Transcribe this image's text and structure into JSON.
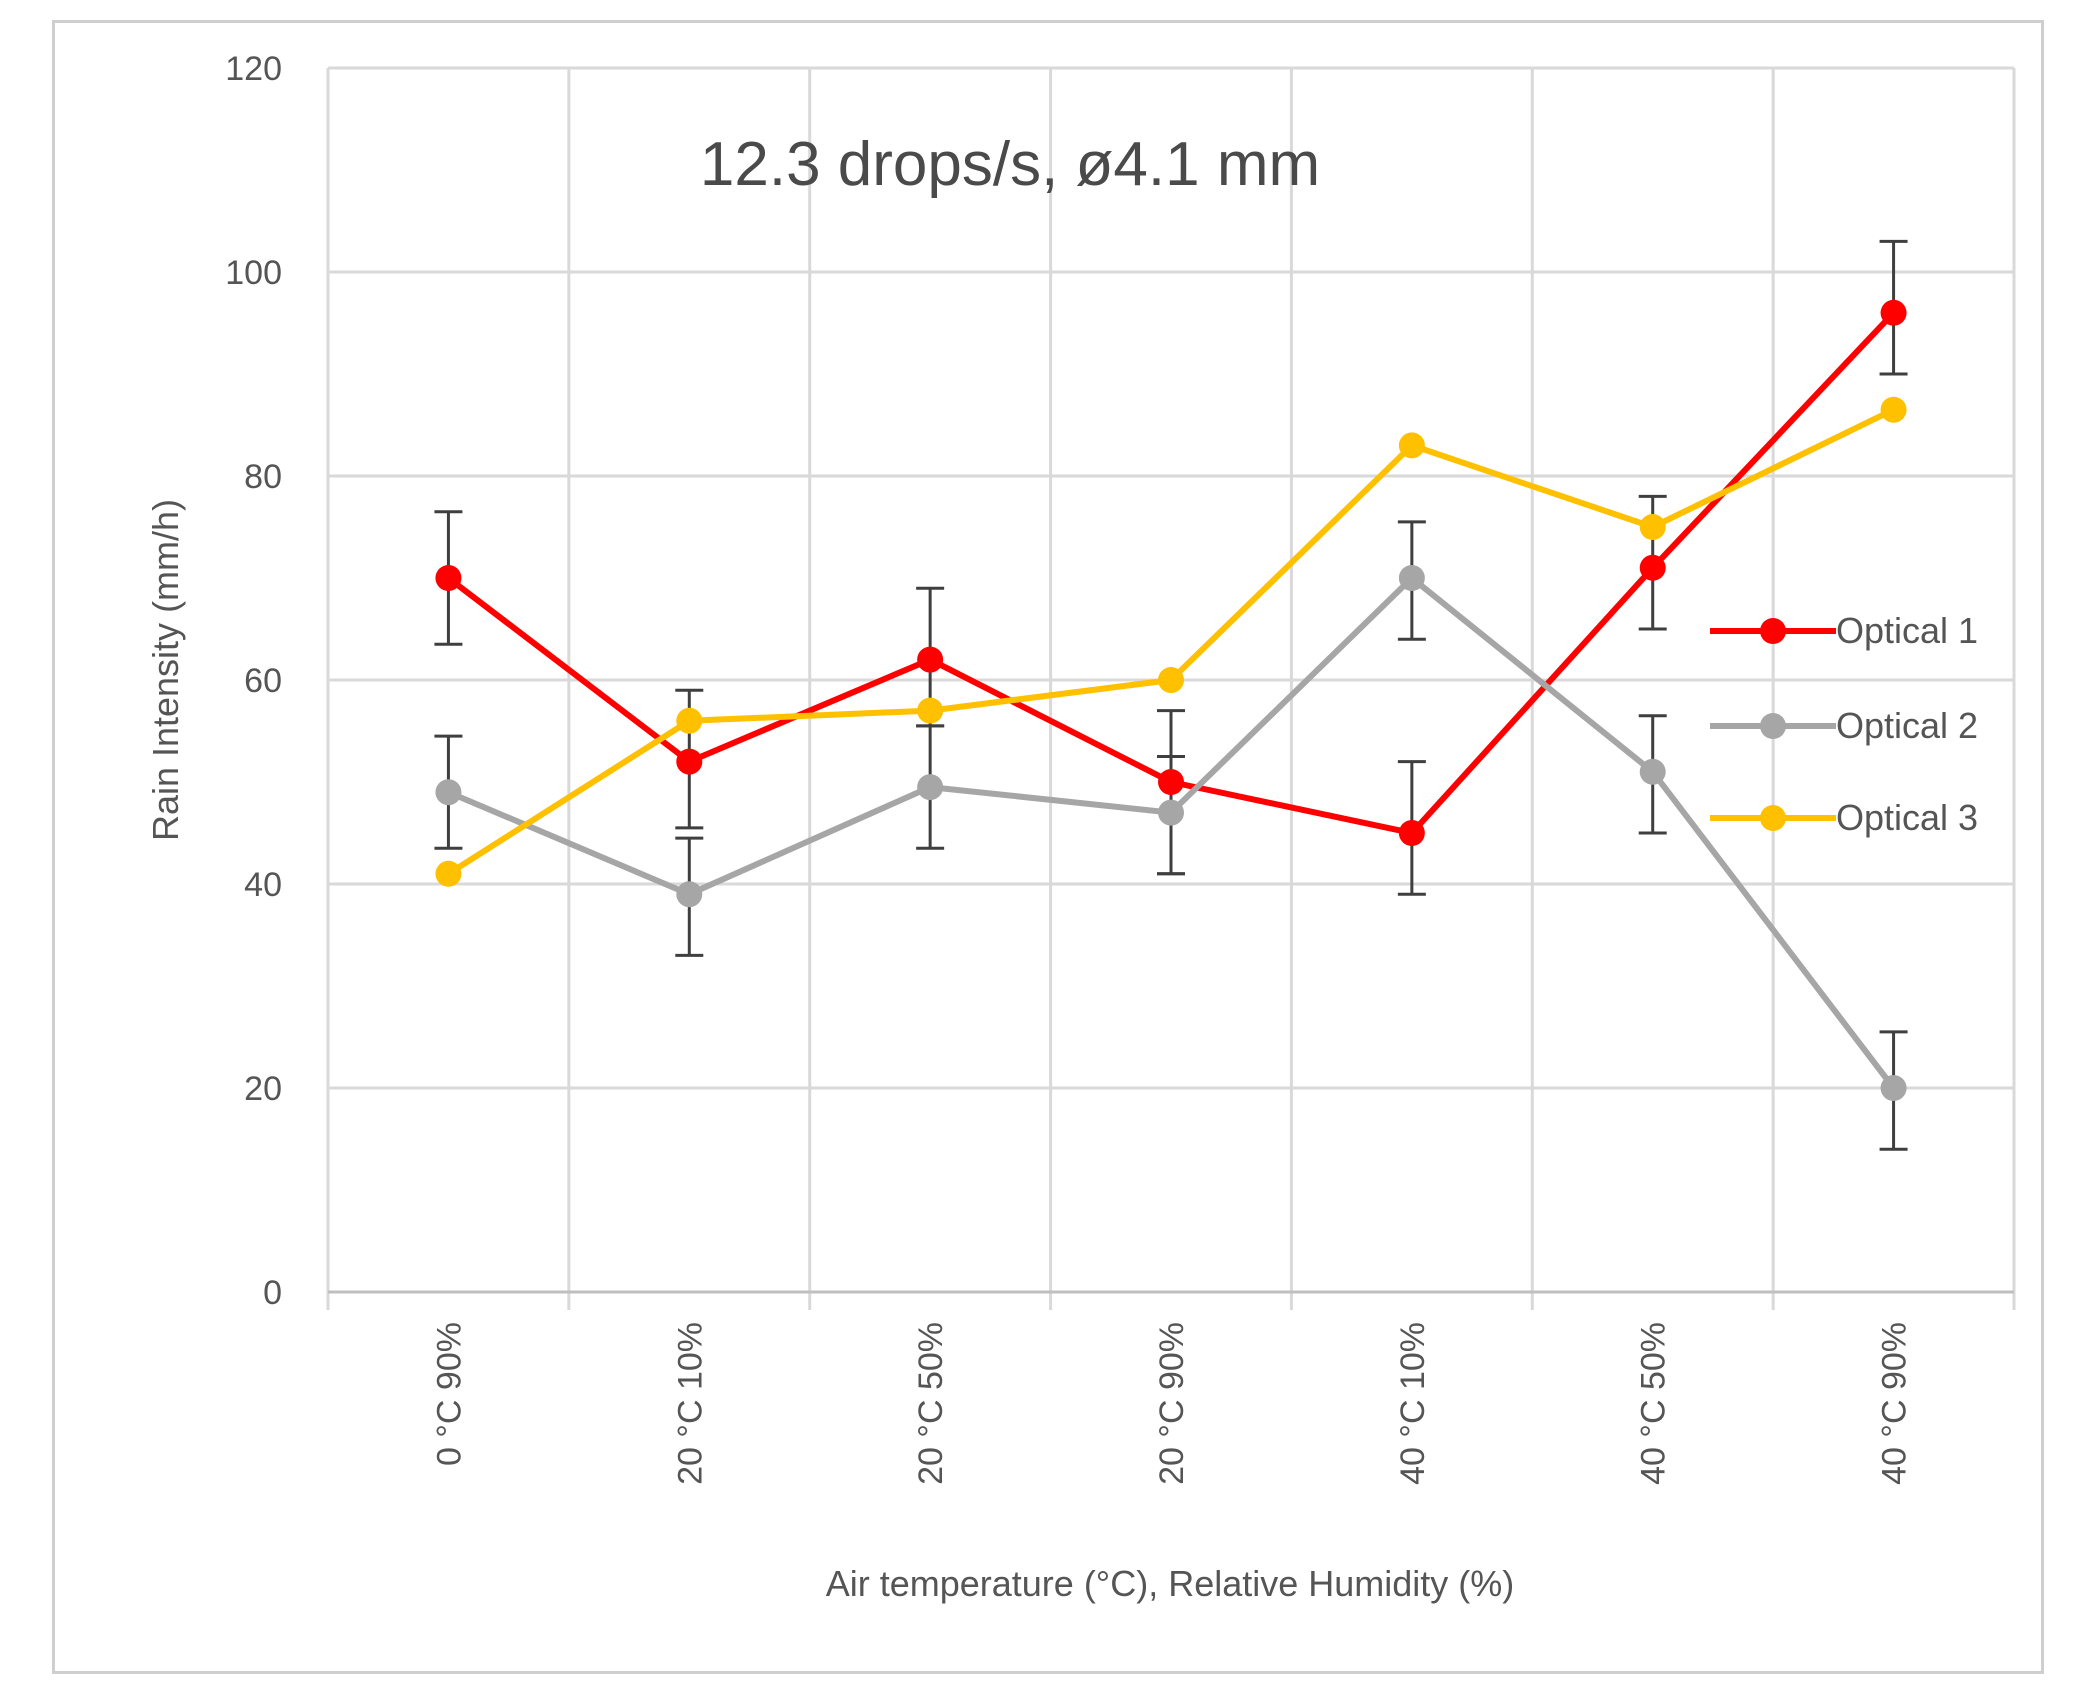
{
  "chart_data": {
    "type": "line",
    "title": "12.3 drops/s, ø4.1 mm",
    "xlabel": "Air temperature  (°C), Relative Humidity (%)",
    "ylabel": "Rain Intensity (mm/h)",
    "ylim": [
      0,
      120
    ],
    "yticks": [
      "0",
      "20",
      "40",
      "60",
      "80",
      "100",
      "120"
    ],
    "categories": [
      "0 °C 90%",
      "20 °C 10%",
      "20 °C 50%",
      "20 °C 90%",
      "40 °C 10%",
      "40 °C 50%",
      "40 °C 90%"
    ],
    "grid": true,
    "legend_position": "right",
    "series": [
      {
        "name": "Optical 1",
        "color": "#ff0000",
        "values": [
          70,
          52,
          62,
          50,
          45,
          71,
          96
        ],
        "error_low": [
          63.5,
          45.5,
          55.5,
          41,
          39,
          65,
          90
        ],
        "error_high": [
          76.5,
          59,
          69,
          57,
          52,
          78,
          103
        ]
      },
      {
        "name": "Optical 2",
        "color": "#a6a6a6",
        "values": [
          49,
          39,
          49.5,
          47,
          70,
          51,
          20
        ],
        "error_low": [
          43.5,
          33,
          43.5,
          41,
          64,
          45,
          14
        ],
        "error_high": [
          54.5,
          44.5,
          55.5,
          52.5,
          75.5,
          56.5,
          25.5
        ]
      },
      {
        "name": "Optical 3",
        "color": "#ffc000",
        "values": [
          41,
          56,
          57,
          60,
          83,
          75,
          86.5
        ],
        "error_low": null,
        "error_high": null
      }
    ]
  }
}
